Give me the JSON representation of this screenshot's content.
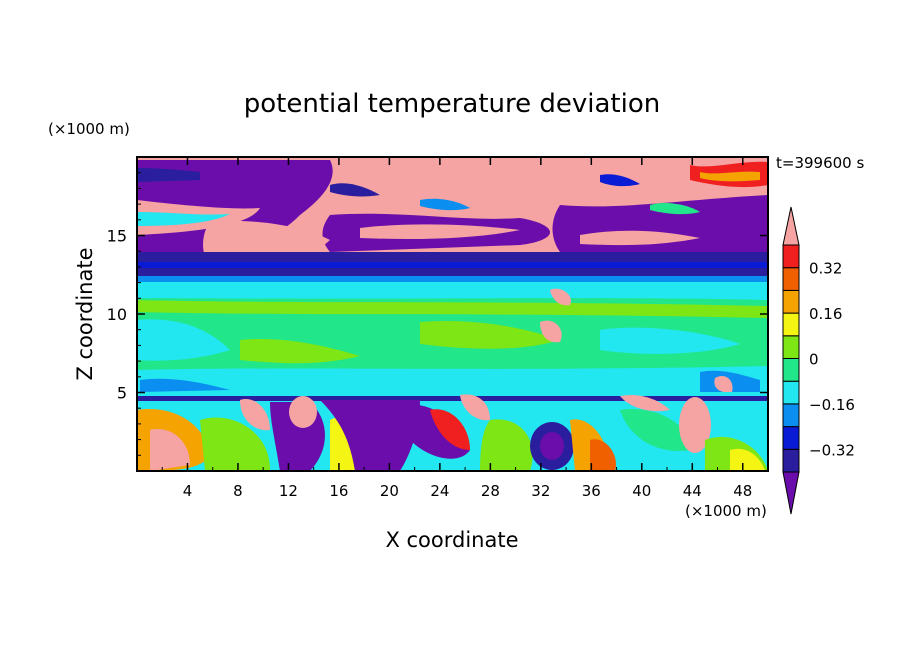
{
  "chart_data": {
    "type": "heatmap",
    "title": "potential temperature deviation",
    "xlabel": "X coordinate",
    "ylabel": "Z coordinate",
    "x_unit": "(×1000 m)",
    "y_unit": "(×1000 m)",
    "time_label": "t=399600 s",
    "xlim": [
      0,
      50
    ],
    "ylim": [
      0,
      20
    ],
    "x_ticks": [
      "4",
      "8",
      "12",
      "16",
      "20",
      "24",
      "28",
      "32",
      "36",
      "40",
      "44",
      "48"
    ],
    "y_ticks": [
      "5",
      "10",
      "15"
    ],
    "colorbar": {
      "tick_labels": [
        "0.32",
        "0.16",
        "0",
        "−0.16",
        "−0.32"
      ],
      "tick_values": [
        0.32,
        0.16,
        0,
        -0.16,
        -0.32
      ],
      "levels": [
        -0.4,
        -0.32,
        -0.24,
        -0.16,
        -0.08,
        0,
        0.08,
        0.16,
        0.24,
        0.32,
        0.4
      ],
      "colors": [
        "#6a0dab",
        "#2a1e9e",
        "#0a1bd6",
        "#0a8ef0",
        "#22e6f0",
        "#22e68a",
        "#7de614",
        "#f5f514",
        "#f5a300",
        "#f06000",
        "#f02020",
        "#f5a3a3"
      ]
    },
    "regions": [
      {
        "name": "upper-layer",
        "z_range": [
          13,
          20
        ],
        "value": "mixed strong positive/negative"
      },
      {
        "name": "band",
        "z_range": [
          12,
          13.5
        ],
        "value": -0.3
      },
      {
        "name": "mid-layer",
        "z_range": [
          5,
          12
        ],
        "value": 0.0
      },
      {
        "name": "boundary-layer",
        "z_range": [
          0,
          5
        ],
        "value": "mixed strong positive/negative"
      }
    ]
  }
}
